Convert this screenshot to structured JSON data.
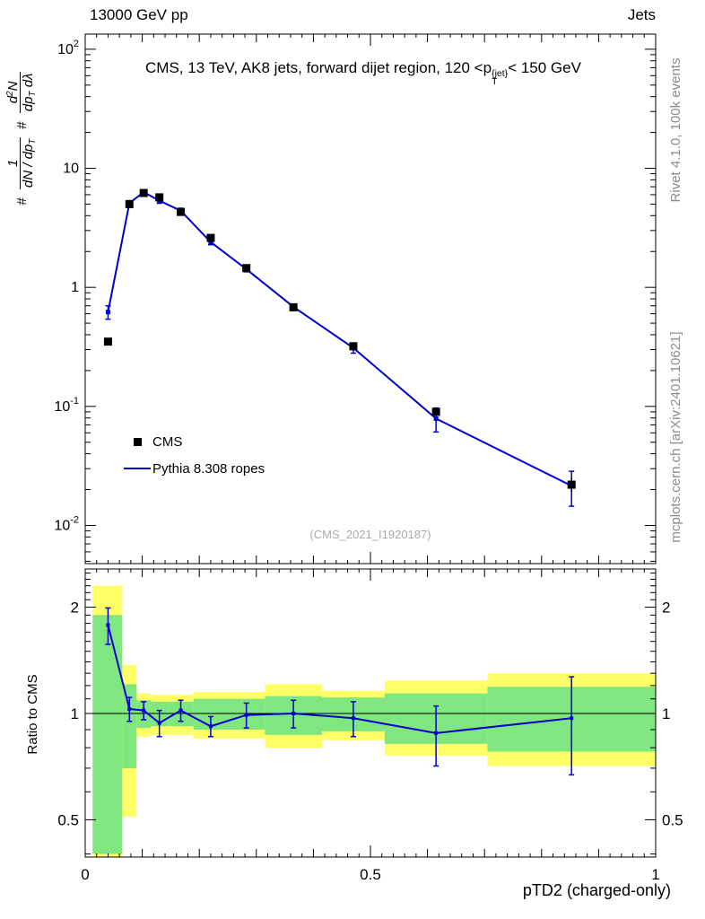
{
  "header": {
    "left": "13000 GeV pp",
    "right": "Jets"
  },
  "panel_title": {
    "pre": "CMS, 13 TeV, AK8 jets, forward dijet region, 120 <p",
    "sup": "{jet}",
    "sub": "T",
    "post": "< 150 GeV"
  },
  "side_notes": {
    "top_right": "Rivet 4.1.0, 100k events",
    "bottom_right": "mcplots.cern.ch [arXiv:2401.10621]"
  },
  "watermark": "(CMS_2021_I1920187)",
  "legend": {
    "cms": "CMS",
    "pythia": "Pythia 8.308 ropes"
  },
  "axes": {
    "x_title": "pTD2 (charged-only)",
    "x_tick_values": [
      0,
      0.5,
      1
    ],
    "x_tick_labels": [
      "0",
      "0.5",
      "1"
    ],
    "y_tick_labels": [
      {
        "v": 100,
        "base": "10",
        "exp": "2"
      },
      {
        "v": 10,
        "base": "10",
        "exp": ""
      },
      {
        "v": 1,
        "base": "1",
        "exp": ""
      },
      {
        "v": 0.1,
        "base": "10",
        "exp": "-1"
      },
      {
        "v": 0.01,
        "base": "10",
        "exp": "-2"
      }
    ],
    "ratio_tick_labels": [
      {
        "v": 2,
        "label": "2"
      },
      {
        "v": 1,
        "label": "1"
      },
      {
        "v": 0.5,
        "label": "0.5"
      }
    ],
    "ratio_y_title": "Ratio to CMS"
  },
  "y_axis_label": {
    "hash1": "#",
    "hash2": "#",
    "frac1": {
      "num": "1",
      "den_main": "dN / dp",
      "den_sub": "T"
    },
    "frac2": {
      "num_a": "d",
      "num_sup": "2",
      "num_b": "N",
      "den_a": "dp",
      "den_sub": "T",
      "den_b": " dλ"
    }
  },
  "chart_data": {
    "type": "line",
    "title": "CMS, 13 TeV, AK8 jets, forward dijet region, 120 < pT{jet} < 150 GeV",
    "xlabel": "pTD2 (charged-only)",
    "ylabel": "# 1/(dN/dpT) # d2N/(dpT dlambda)",
    "x_range": [
      0,
      1
    ],
    "y_scale": "log",
    "y_range": [
      0.00478,
      134
    ],
    "grid": false,
    "legend_position": "center-left",
    "bin_edges": [
      0.013,
      0.065,
      0.09,
      0.115,
      0.145,
      0.19,
      0.25,
      0.315,
      0.415,
      0.525,
      0.705,
      1.0
    ],
    "x": [
      0.04,
      0.0775,
      0.1025,
      0.13,
      0.1675,
      0.22,
      0.2825,
      0.365,
      0.47,
      0.615,
      0.8525
    ],
    "series": [
      {
        "name": "CMS",
        "style": "points",
        "color": "#000000",
        "y": [
          0.35,
          5.0,
          6.2,
          5.7,
          4.3,
          2.6,
          1.45,
          0.68,
          0.32,
          0.09,
          0.022
        ],
        "yerr": [
          0.02,
          0.2,
          0.25,
          0.23,
          0.17,
          0.1,
          0.06,
          0.03,
          0.02,
          0.007,
          0.003
        ]
      },
      {
        "name": "Pythia 8.308 ropes",
        "style": "line+points",
        "color": "#0000cc",
        "y": [
          0.62,
          5.1,
          6.3,
          5.35,
          4.4,
          2.4,
          1.42,
          0.685,
          0.31,
          0.079,
          0.0215
        ],
        "yerr": [
          0.08,
          0.25,
          0.3,
          0.27,
          0.22,
          0.12,
          0.07,
          0.035,
          0.03,
          0.018,
          0.007
        ]
      }
    ],
    "ratio": {
      "label": "Ratio to CMS",
      "y_scale": "log",
      "y_range": [
        0.392,
        2.566
      ],
      "unity_line": 1,
      "values": [
        1.78,
        1.03,
        1.02,
        0.94,
        1.02,
        0.92,
        0.99,
        1.0,
        0.97,
        0.88,
        0.97
      ],
      "yerr": [
        0.21,
        0.08,
        0.06,
        0.08,
        0.07,
        0.06,
        0.08,
        0.09,
        0.11,
        0.17,
        0.3
      ],
      "band_yellow": [
        [
          0.38,
          2.3
        ],
        [
          0.51,
          1.37
        ],
        [
          0.86,
          1.14
        ],
        [
          0.87,
          1.13
        ],
        [
          0.87,
          1.13
        ],
        [
          0.85,
          1.15
        ],
        [
          0.85,
          1.15
        ],
        [
          0.8,
          1.21
        ],
        [
          0.84,
          1.16
        ],
        [
          0.76,
          1.24
        ],
        [
          0.71,
          1.3
        ]
      ],
      "band_green": [
        [
          0.4,
          1.9
        ],
        [
          0.7,
          1.21
        ],
        [
          0.91,
          1.09
        ],
        [
          0.92,
          1.08
        ],
        [
          0.92,
          1.08
        ],
        [
          0.9,
          1.1
        ],
        [
          0.9,
          1.1
        ],
        [
          0.87,
          1.12
        ],
        [
          0.89,
          1.11
        ],
        [
          0.82,
          1.14
        ],
        [
          0.78,
          1.19
        ]
      ]
    },
    "colors": {
      "pythia": "#0000cc",
      "cms": "#000000",
      "band_yellow": "#ffff66",
      "band_green": "#80e680",
      "watermark": "#a9a9a9"
    }
  }
}
